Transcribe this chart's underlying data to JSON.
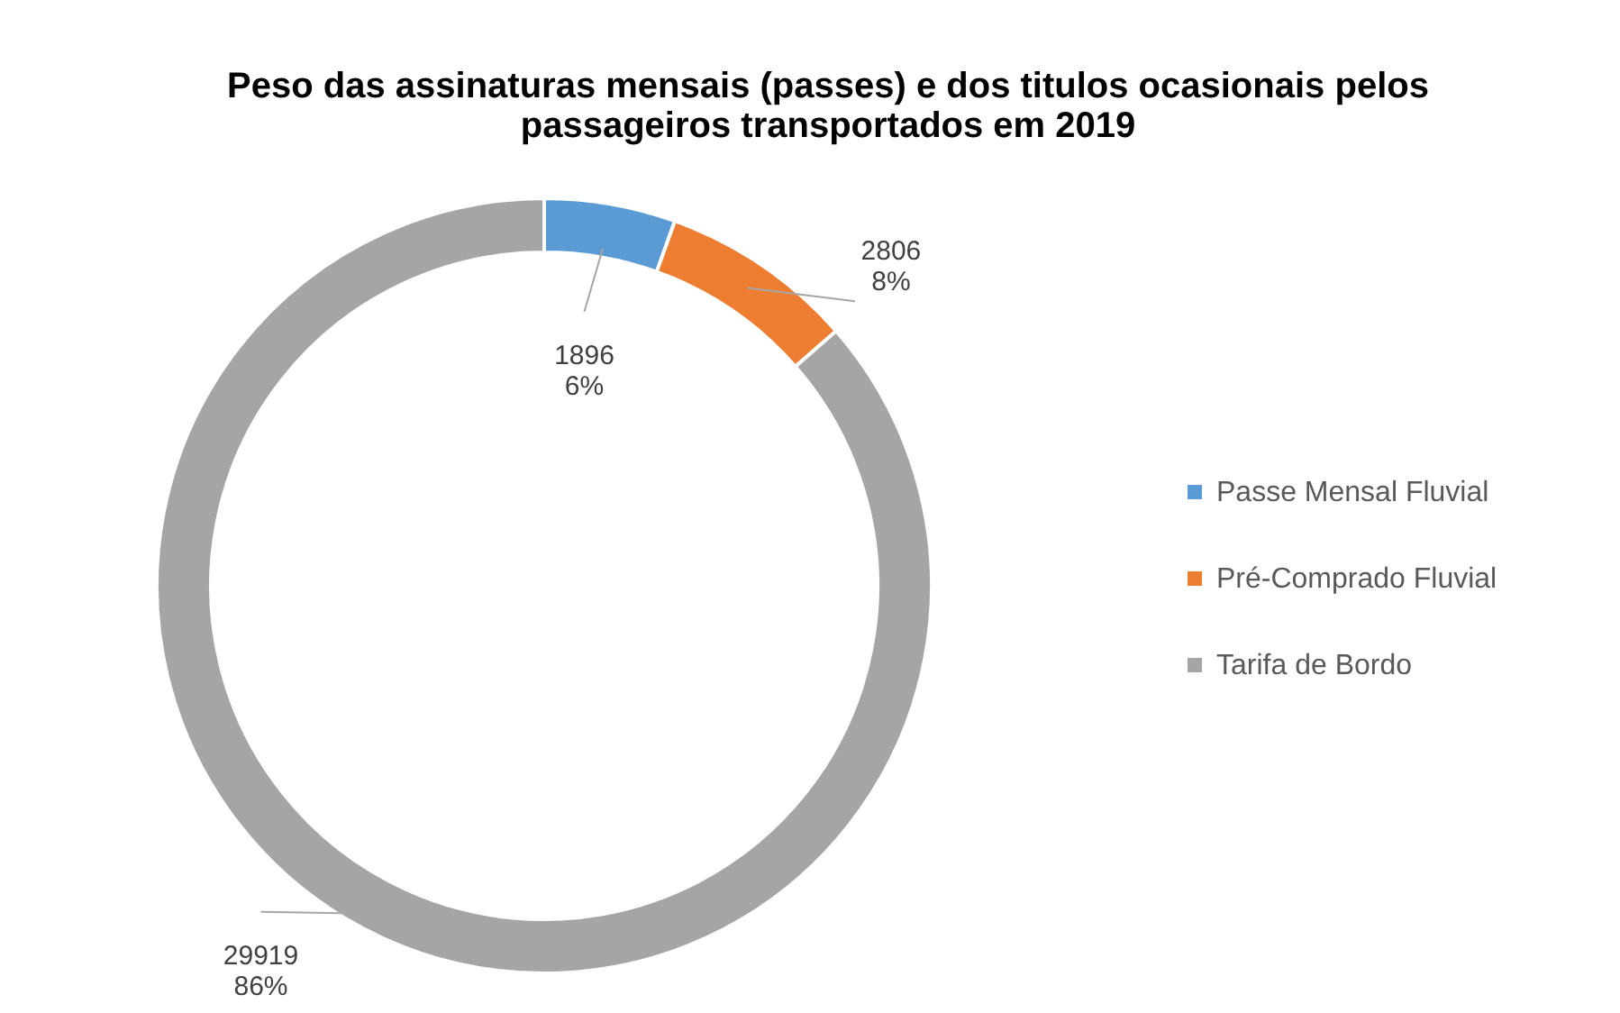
{
  "chart_data": {
    "type": "donut",
    "title": [
      "Peso das assinaturas mensais (passes) e dos titulos ocasionais pelos",
      "passageiros transportados em 2019"
    ],
    "categories": [
      "Passe Mensal Fluvial",
      "Pré-Comprado Fluvial",
      "Tarifa de Bordo"
    ],
    "values": [
      1896,
      2806,
      29919
    ],
    "colors": [
      "#5b9bd5",
      "#ed7d31",
      "#a5a5a5"
    ],
    "value_labels": [
      "1896\n6%",
      "2806\n8%",
      "29919\n86%"
    ],
    "legend": "right"
  }
}
